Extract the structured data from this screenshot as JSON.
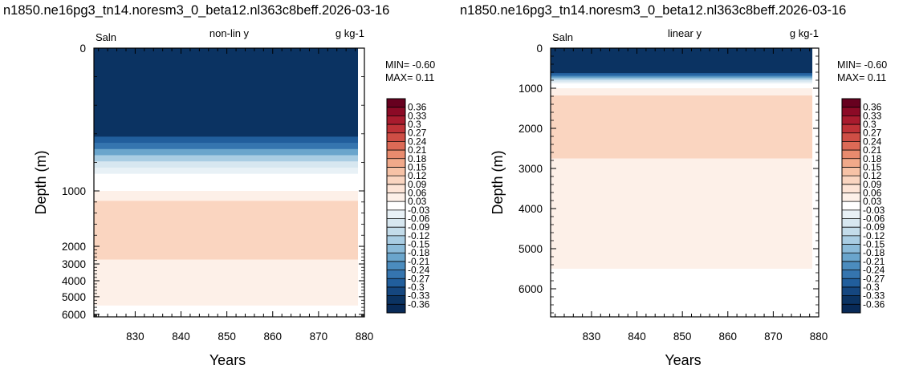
{
  "chart_data": [
    {
      "type": "heatmap",
      "title": "n1850.ne16pg3_tn14.noresm3_0_beta12.nl363c8beff.2026-03-16",
      "left_label": "Saln",
      "center_label": "non-lin y",
      "right_label": "g kg-1",
      "xlabel": "Years",
      "ylabel": "Depth (m)",
      "xlim": [
        821,
        880
      ],
      "x_ticks": [
        "830",
        "840",
        "850",
        "860",
        "870",
        "880"
      ],
      "y_scale": "non-linear",
      "ylim": [
        6700,
        0
      ],
      "y_ticks": [
        "0",
        "1000",
        "2000",
        "3000",
        "4000",
        "5000",
        "6000"
      ],
      "min_text": "MIN= -0.60",
      "max_text": "MAX=  0.11",
      "layers": [
        {
          "top": 0,
          "bottom": 620,
          "value": -0.36
        },
        {
          "top": 620,
          "bottom": 880,
          "value": -0.2
        },
        {
          "top": 880,
          "bottom": 1000,
          "value": 0.0
        },
        {
          "top": 1000,
          "bottom": 1180,
          "value": 0.045
        },
        {
          "top": 1180,
          "bottom": 2750,
          "value": 0.1
        },
        {
          "top": 2750,
          "bottom": 5500,
          "value": 0.05
        },
        {
          "top": 5500,
          "bottom": 6700,
          "value": 0.0
        }
      ]
    },
    {
      "type": "heatmap",
      "title": "n1850.ne16pg3_tn14.noresm3_0_beta12.nl363c8beff.2026-03-16",
      "left_label": "Saln",
      "center_label": "linear y",
      "right_label": "g kg-1",
      "xlabel": "Years",
      "ylabel": "Depth (m)",
      "xlim": [
        821,
        880
      ],
      "x_ticks": [
        "830",
        "840",
        "850",
        "860",
        "870",
        "880"
      ],
      "y_scale": "linear",
      "ylim": [
        6700,
        0
      ],
      "y_ticks": [
        "0",
        "1000",
        "2000",
        "3000",
        "4000",
        "5000",
        "6000"
      ],
      "min_text": "MIN= -0.60",
      "max_text": "MAX=  0.11",
      "layers": [
        {
          "top": 0,
          "bottom": 620,
          "value": -0.36
        },
        {
          "top": 620,
          "bottom": 880,
          "value": -0.2
        },
        {
          "top": 880,
          "bottom": 1000,
          "value": 0.0
        },
        {
          "top": 1000,
          "bottom": 1180,
          "value": 0.045
        },
        {
          "top": 1180,
          "bottom": 2750,
          "value": 0.1
        },
        {
          "top": 2750,
          "bottom": 5500,
          "value": 0.05
        },
        {
          "top": 5500,
          "bottom": 6700,
          "value": 0.0
        }
      ]
    }
  ],
  "colorbar": {
    "labels": [
      "0.36",
      "0.33",
      "0.3",
      "0.27",
      "0.24",
      "0.21",
      "0.18",
      "0.15",
      "0.12",
      "0.09",
      "0.06",
      "0.03",
      "-0.03",
      "-0.06",
      "-0.09",
      "-0.12",
      "-0.15",
      "-0.18",
      "-0.21",
      "-0.24",
      "-0.27",
      "-0.3",
      "-0.33",
      "-0.36"
    ],
    "colors": [
      "#67001f",
      "#8c0a26",
      "#a91b2e",
      "#bf3237",
      "#cf4e45",
      "#dc6a56",
      "#e88b6e",
      "#f1a98a",
      "#f7c2a6",
      "#fad5c0",
      "#fde4d6",
      "#fdf0e8",
      "#ffffff",
      "#e8f1f6",
      "#d7e7f0",
      "#c3dcea",
      "#a9cde3",
      "#8bbbd9",
      "#6aa5cc",
      "#4b8cbe",
      "#3575af",
      "#215e9c",
      "#154780",
      "#0b3362",
      "#082a57"
    ]
  }
}
